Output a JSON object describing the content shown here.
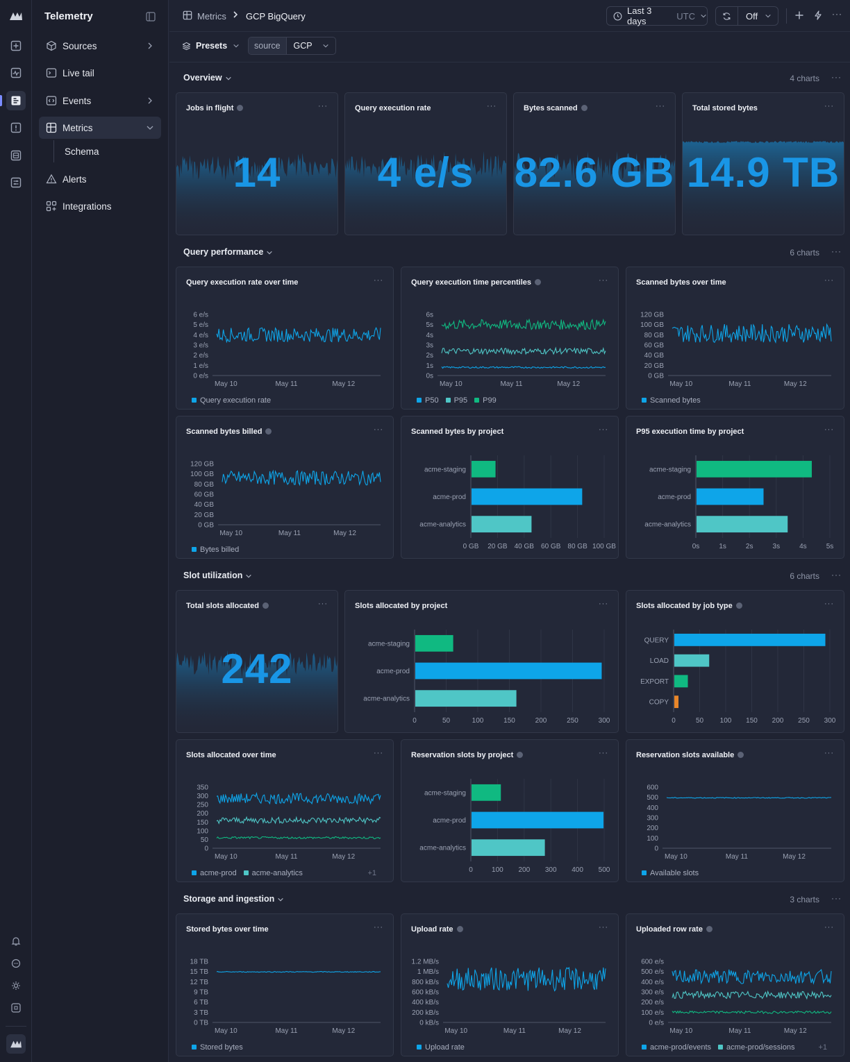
{
  "app": {
    "title": "Telemetry"
  },
  "sidebar": {
    "items": [
      {
        "label": "Sources"
      },
      {
        "label": "Live tail"
      },
      {
        "label": "Events"
      },
      {
        "label": "Metrics"
      },
      {
        "label": "Schema"
      },
      {
        "label": "Alerts"
      },
      {
        "label": "Integrations"
      }
    ]
  },
  "breadcrumb": {
    "parent": "Metrics",
    "current": "GCP BigQuery"
  },
  "toolbar": {
    "time_range": "Last 3 days",
    "timezone": "UTC",
    "refresh": "Off"
  },
  "filters": {
    "presets_label": "Presets",
    "filter_key": "source",
    "filter_value": "GCP"
  },
  "colors": {
    "blue": "#0ea5e9",
    "teal": "#4fc6c6",
    "green": "#10b981",
    "orange": "#e8862a"
  },
  "sections": [
    {
      "title": "Overview",
      "count": "4 charts"
    },
    {
      "title": "Query performance",
      "count": "6 charts"
    },
    {
      "title": "Slot utilization",
      "count": "6 charts"
    },
    {
      "title": "Storage and ingestion",
      "count": "3 charts"
    }
  ],
  "cards": {
    "jobs_in_flight": {
      "title": "Jobs in flight",
      "value": "14"
    },
    "query_execution_rate": {
      "title": "Query execution rate",
      "value": "4 e/s"
    },
    "bytes_scanned": {
      "title": "Bytes scanned",
      "value": "82.6 GB"
    },
    "total_stored_bytes": {
      "title": "Total stored bytes",
      "value": "14.9 TB"
    },
    "total_slots_allocated": {
      "title": "Total slots allocated",
      "value": "242"
    },
    "exec_rate_over_time": {
      "title": "Query execution rate over time",
      "legend": [
        "Query execution rate"
      ]
    },
    "exec_time_percentiles": {
      "title": "Query execution time percentiles",
      "legend": [
        "P50",
        "P95",
        "P99"
      ]
    },
    "scanned_bytes_over_time": {
      "title": "Scanned bytes over time",
      "legend": [
        "Scanned bytes"
      ]
    },
    "scanned_bytes_billed": {
      "title": "Scanned bytes billed",
      "legend": [
        "Bytes billed"
      ]
    },
    "scanned_bytes_by_project": {
      "title": "Scanned bytes by project"
    },
    "p95_by_project": {
      "title": "P95 execution time by project"
    },
    "slots_by_project": {
      "title": "Slots allocated by project"
    },
    "slots_by_job_type": {
      "title": "Slots allocated by job type"
    },
    "slots_over_time": {
      "title": "Slots allocated over time",
      "legend": [
        "acme-prod",
        "acme-analytics"
      ],
      "legend_more": "+1"
    },
    "reservation_by_project": {
      "title": "Reservation slots by project"
    },
    "reservation_available": {
      "title": "Reservation slots available",
      "legend": [
        "Available slots"
      ]
    },
    "stored_bytes_over_time": {
      "title": "Stored bytes over time",
      "legend": [
        "Stored bytes"
      ]
    },
    "upload_rate": {
      "title": "Upload rate",
      "legend": [
        "Upload rate"
      ]
    },
    "uploaded_row_rate": {
      "title": "Uploaded row rate",
      "legend": [
        "acme-prod/events",
        "acme-prod/sessions"
      ],
      "legend_more": "+1"
    }
  },
  "chart_data": [
    {
      "id": "exec_rate_over_time",
      "type": "line",
      "x_ticks": [
        "May 10",
        "May 11",
        "May 12"
      ],
      "y_ticks": [
        "0 e/s",
        "1 e/s",
        "2 e/s",
        "3 e/s",
        "4 e/s",
        "5 e/s",
        "6 e/s"
      ],
      "ylim": [
        0,
        6
      ],
      "series": [
        {
          "name": "Query execution rate",
          "color": "#0ea5e9",
          "mean": 4,
          "noise": 0.7
        }
      ]
    },
    {
      "id": "exec_time_percentiles",
      "type": "line",
      "x_ticks": [
        "May 10",
        "May 11",
        "May 12"
      ],
      "y_ticks": [
        "0s",
        "1s",
        "2s",
        "3s",
        "4s",
        "5s",
        "6s"
      ],
      "ylim": [
        0,
        6
      ],
      "series": [
        {
          "name": "P99",
          "color": "#10b981",
          "mean": 5,
          "noise": 0.5
        },
        {
          "name": "P95",
          "color": "#4fc6c6",
          "mean": 2.4,
          "noise": 0.3
        },
        {
          "name": "P50",
          "color": "#0ea5e9",
          "mean": 0.8,
          "noise": 0.08
        }
      ]
    },
    {
      "id": "scanned_bytes_over_time",
      "type": "line",
      "x_ticks": [
        "May 10",
        "May 11",
        "May 12"
      ],
      "y_ticks": [
        "0 GB",
        "20 GB",
        "40 GB",
        "60 GB",
        "80 GB",
        "100 GB",
        "120 GB"
      ],
      "ylim": [
        0,
        120
      ],
      "series": [
        {
          "name": "Scanned bytes",
          "color": "#0ea5e9",
          "mean": 83,
          "noise": 18
        }
      ]
    },
    {
      "id": "scanned_bytes_billed",
      "type": "line",
      "x_ticks": [
        "May 10",
        "May 11",
        "May 12"
      ],
      "y_ticks": [
        "0 GB",
        "20 GB",
        "40 GB",
        "60 GB",
        "80 GB",
        "100 GB",
        "120 GB"
      ],
      "ylim": [
        0,
        120
      ],
      "series": [
        {
          "name": "Bytes billed",
          "color": "#0ea5e9",
          "mean": 92,
          "noise": 14
        }
      ]
    },
    {
      "id": "scanned_bytes_by_project",
      "type": "bar",
      "categories": [
        "acme-staging",
        "acme-prod",
        "acme-analytics"
      ],
      "values": [
        18,
        83,
        45
      ],
      "colors": [
        "#10b981",
        "#0ea5e9",
        "#4fc6c6"
      ],
      "x_ticks": [
        "0 GB",
        "20 GB",
        "40 GB",
        "60 GB",
        "80 GB",
        "100 GB"
      ],
      "xlim": [
        0,
        100
      ]
    },
    {
      "id": "p95_by_project",
      "type": "bar",
      "categories": [
        "acme-staging",
        "acme-prod",
        "acme-analytics"
      ],
      "values": [
        4.3,
        2.5,
        3.4
      ],
      "colors": [
        "#10b981",
        "#0ea5e9",
        "#4fc6c6"
      ],
      "x_ticks": [
        "0s",
        "1s",
        "2s",
        "3s",
        "4s",
        "5s"
      ],
      "xlim": [
        0,
        5
      ]
    },
    {
      "id": "slots_by_project",
      "type": "bar",
      "categories": [
        "acme-staging",
        "acme-prod",
        "acme-analytics"
      ],
      "values": [
        60,
        295,
        160
      ],
      "colors": [
        "#10b981",
        "#0ea5e9",
        "#4fc6c6"
      ],
      "x_ticks": [
        "0",
        "50",
        "100",
        "150",
        "200",
        "250",
        "300"
      ],
      "xlim": [
        0,
        300
      ]
    },
    {
      "id": "slots_by_job_type",
      "type": "bar",
      "categories": [
        "QUERY",
        "LOAD",
        "EXPORT",
        "COPY"
      ],
      "values": [
        290,
        67,
        26,
        8
      ],
      "colors": [
        "#0ea5e9",
        "#4fc6c6",
        "#10b981",
        "#e8862a"
      ],
      "x_ticks": [
        "0",
        "50",
        "100",
        "150",
        "200",
        "250",
        "300"
      ],
      "xlim": [
        0,
        300
      ]
    },
    {
      "id": "slots_over_time",
      "type": "line",
      "x_ticks": [
        "May 10",
        "May 11",
        "May 12"
      ],
      "y_ticks": [
        "0",
        "50",
        "100",
        "150",
        "200",
        "250",
        "300",
        "350"
      ],
      "ylim": [
        0,
        350
      ],
      "series": [
        {
          "name": "acme-prod",
          "color": "#0ea5e9",
          "mean": 285,
          "noise": 30
        },
        {
          "name": "acme-analytics",
          "color": "#4fc6c6",
          "mean": 160,
          "noise": 18
        },
        {
          "name": "",
          "color": "#10b981",
          "mean": 60,
          "noise": 6
        }
      ]
    },
    {
      "id": "reservation_by_project",
      "type": "bar",
      "categories": [
        "acme-staging",
        "acme-prod",
        "acme-analytics"
      ],
      "values": [
        110,
        495,
        275
      ],
      "colors": [
        "#10b981",
        "#0ea5e9",
        "#4fc6c6"
      ],
      "x_ticks": [
        "0",
        "100",
        "200",
        "300",
        "400",
        "500"
      ],
      "xlim": [
        0,
        500
      ]
    },
    {
      "id": "reservation_available",
      "type": "line",
      "x_ticks": [
        "May 10",
        "May 11",
        "May 12"
      ],
      "y_ticks": [
        "0",
        "100",
        "200",
        "300",
        "400",
        "500",
        "600"
      ],
      "ylim": [
        0,
        600
      ],
      "series": [
        {
          "name": "Available slots",
          "color": "#0ea5e9",
          "mean": 495,
          "noise": 4
        }
      ]
    },
    {
      "id": "stored_bytes_over_time",
      "type": "line",
      "x_ticks": [
        "May 10",
        "May 11",
        "May 12"
      ],
      "y_ticks": [
        "0 TB",
        "3 TB",
        "6 TB",
        "9 TB",
        "12 TB",
        "15 TB",
        "18 TB"
      ],
      "ylim": [
        0,
        18
      ],
      "series": [
        {
          "name": "Stored bytes",
          "color": "#0ea5e9",
          "mean": 14.9,
          "noise": 0.12
        }
      ]
    },
    {
      "id": "upload_rate",
      "type": "line",
      "x_ticks": [
        "May 10",
        "May 11",
        "May 12"
      ],
      "y_ticks": [
        "0 kB/s",
        "200 kB/s",
        "400 kB/s",
        "600 kB/s",
        "800 kB/s",
        "1 MB/s",
        "1.2 MB/s"
      ],
      "ylim": [
        0,
        1200
      ],
      "series": [
        {
          "name": "Upload rate",
          "color": "#0ea5e9",
          "mean": 850,
          "noise": 230
        }
      ]
    },
    {
      "id": "uploaded_row_rate",
      "type": "line",
      "x_ticks": [
        "May 10",
        "May 11",
        "May 12"
      ],
      "y_ticks": [
        "0 e/s",
        "100 e/s",
        "200 e/s",
        "300 e/s",
        "400 e/s",
        "500 e/s",
        "600 e/s"
      ],
      "ylim": [
        0,
        600
      ],
      "series": [
        {
          "name": "acme-prod/events",
          "color": "#0ea5e9",
          "mean": 450,
          "noise": 70
        },
        {
          "name": "acme-prod/sessions",
          "color": "#4fc6c6",
          "mean": 270,
          "noise": 35
        },
        {
          "name": "",
          "color": "#10b981",
          "mean": 100,
          "noise": 12
        }
      ]
    }
  ]
}
